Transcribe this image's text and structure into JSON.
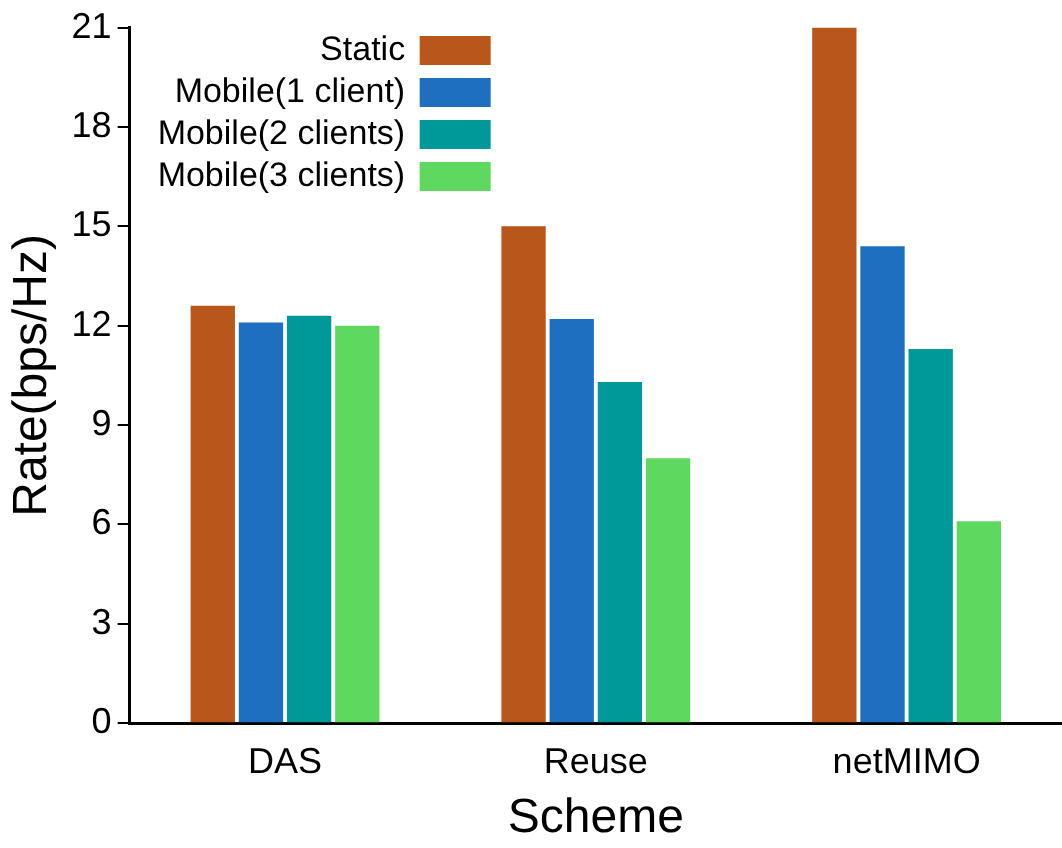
{
  "chart_data": {
    "type": "bar",
    "xlabel": "Scheme",
    "ylabel": "Rate(bps/Hz)",
    "categories": [
      "DAS",
      "Reuse",
      "netMIMO"
    ],
    "series": [
      {
        "name": "Static",
        "color": "#b8561b",
        "values": [
          12.6,
          15.0,
          21.0
        ]
      },
      {
        "name": "Mobile(1 client)",
        "color": "#1f6fc0",
        "values": [
          12.1,
          12.2,
          14.4
        ]
      },
      {
        "name": "Mobile(2 clients)",
        "color": "#00999a",
        "values": [
          12.3,
          10.3,
          11.3
        ]
      },
      {
        "name": "Mobile(3 clients)",
        "color": "#5fd85f",
        "values": [
          12.0,
          8.0,
          6.1
        ]
      }
    ],
    "ylim": [
      0,
      21
    ],
    "yticks": [
      0,
      3,
      6,
      9,
      12,
      15,
      18,
      21
    ],
    "grid": false,
    "legend": "top left"
  }
}
